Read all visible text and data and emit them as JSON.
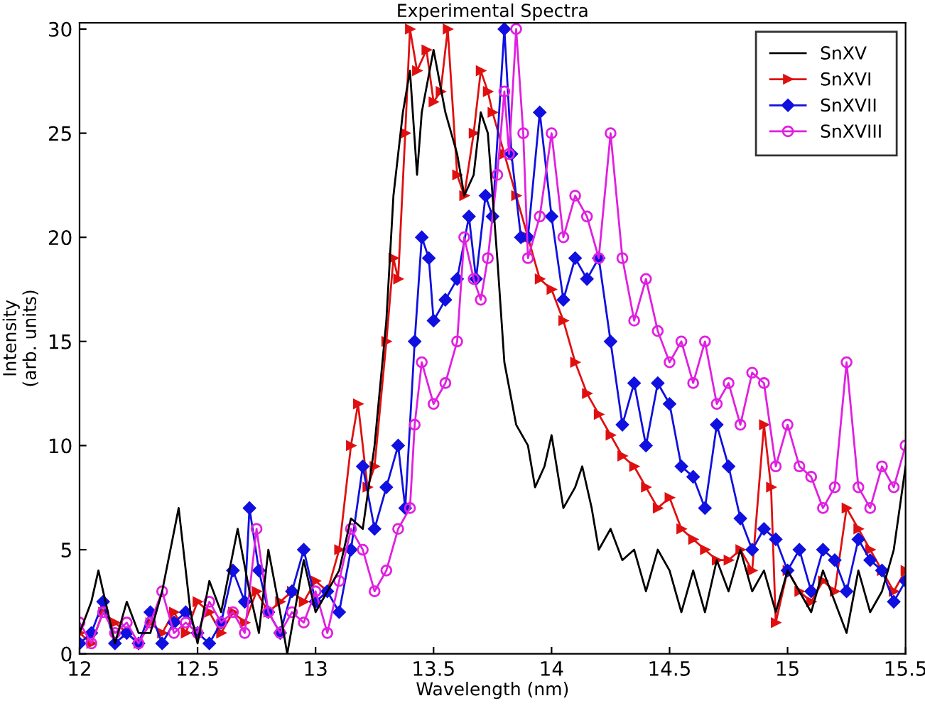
{
  "chart_data": {
    "type": "line",
    "title": "Experimental Spectra",
    "xlabel": "Wavelength (nm)",
    "ylabel": "Intensity\n(arb. units)",
    "xlim": [
      12,
      15.5
    ],
    "ylim": [
      0,
      30.3
    ],
    "xticks": [
      12,
      12.5,
      13,
      13.5,
      14,
      14.5,
      15,
      15.5
    ],
    "yticks": [
      0,
      5,
      10,
      15,
      20,
      25,
      30
    ],
    "grid": false,
    "legend": "top right",
    "line_style": "solid",
    "series": [
      {
        "name": "SnXV",
        "color": "#000000",
        "marker": "none",
        "x": [
          12.0,
          12.05,
          12.08,
          12.12,
          12.15,
          12.2,
          12.25,
          12.3,
          12.35,
          12.42,
          12.47,
          12.5,
          12.55,
          12.6,
          12.67,
          12.72,
          12.76,
          12.8,
          12.85,
          12.88,
          12.95,
          13.0,
          13.05,
          13.1,
          13.15,
          13.2,
          13.25,
          13.3,
          13.33,
          13.37,
          13.4,
          13.43,
          13.45,
          13.5,
          13.55,
          13.6,
          13.63,
          13.67,
          13.7,
          13.73,
          13.77,
          13.8,
          13.85,
          13.9,
          13.93,
          13.97,
          14.0,
          14.05,
          14.1,
          14.13,
          14.17,
          14.2,
          14.25,
          14.3,
          14.35,
          14.4,
          14.45,
          14.5,
          14.55,
          14.6,
          14.65,
          14.7,
          14.75,
          14.8,
          14.85,
          14.9,
          14.95,
          15.0,
          15.05,
          15.1,
          15.15,
          15.2,
          15.25,
          15.3,
          15.35,
          15.4,
          15.45,
          15.5
        ],
        "values": [
          1,
          2.5,
          4,
          2,
          0.5,
          2.5,
          1,
          1,
          3,
          7,
          2,
          0.5,
          3.5,
          2,
          6,
          3,
          1,
          5,
          2,
          0,
          4.5,
          2,
          3,
          4,
          6.5,
          6,
          10,
          16,
          22,
          26,
          28,
          23,
          26,
          29,
          26,
          24,
          22,
          23,
          26,
          25,
          19,
          14,
          11,
          10,
          8,
          9,
          10.5,
          7,
          8,
          9,
          7,
          5,
          6,
          4.5,
          5,
          3,
          5,
          4,
          2,
          4,
          2,
          4.5,
          3,
          5,
          3,
          4,
          2,
          4,
          3,
          2,
          4,
          2.5,
          1,
          4,
          2,
          3,
          5,
          9
        ]
      },
      {
        "name": "SnXVI",
        "color": "#e01010",
        "marker": "triangle",
        "x": [
          12.0,
          12.05,
          12.1,
          12.15,
          12.2,
          12.25,
          12.3,
          12.35,
          12.4,
          12.45,
          12.5,
          12.55,
          12.6,
          12.65,
          12.7,
          12.75,
          12.8,
          12.85,
          12.9,
          12.95,
          13.0,
          13.05,
          13.1,
          13.15,
          13.18,
          13.22,
          13.25,
          13.3,
          13.33,
          13.35,
          13.38,
          13.4,
          13.43,
          13.47,
          13.5,
          13.53,
          13.56,
          13.6,
          13.63,
          13.67,
          13.7,
          13.73,
          13.75,
          13.8,
          13.85,
          13.9,
          13.95,
          14.0,
          14.05,
          14.1,
          14.15,
          14.2,
          14.25,
          14.3,
          14.35,
          14.4,
          14.45,
          14.5,
          14.55,
          14.6,
          14.65,
          14.7,
          14.75,
          14.8,
          14.85,
          14.9,
          14.93,
          14.95,
          15.0,
          15.05,
          15.1,
          15.15,
          15.2,
          15.25,
          15.3,
          15.35,
          15.4,
          15.45,
          15.5
        ],
        "values": [
          1,
          0.5,
          2,
          1.5,
          1,
          0.5,
          1.5,
          1,
          2,
          1,
          2.5,
          2,
          1,
          2,
          1.5,
          3,
          2,
          2.5,
          3,
          2.5,
          3.5,
          3,
          5,
          10,
          12,
          8,
          9,
          15,
          19,
          18,
          25,
          30,
          28,
          29,
          26.5,
          27,
          30,
          23,
          22,
          25,
          28,
          27,
          26,
          24,
          22,
          20,
          18,
          17.5,
          16,
          14,
          12.5,
          11.5,
          10.5,
          9.5,
          9,
          8,
          7,
          7.5,
          6,
          5.5,
          5,
          4.5,
          4.5,
          5,
          4,
          11,
          8,
          1.5,
          4,
          3,
          2.5,
          3.5,
          3,
          7,
          6,
          5,
          4,
          3,
          4
        ]
      },
      {
        "name": "SnXVII",
        "color": "#1010e0",
        "marker": "diamond",
        "x": [
          12.0,
          12.05,
          12.1,
          12.15,
          12.2,
          12.25,
          12.3,
          12.35,
          12.4,
          12.45,
          12.5,
          12.55,
          12.6,
          12.65,
          12.7,
          12.72,
          12.76,
          12.8,
          12.85,
          12.9,
          12.95,
          13.0,
          13.05,
          13.1,
          13.15,
          13.2,
          13.25,
          13.3,
          13.35,
          13.38,
          13.42,
          13.45,
          13.48,
          13.5,
          13.55,
          13.6,
          13.65,
          13.68,
          13.72,
          13.75,
          13.8,
          13.83,
          13.87,
          13.9,
          13.95,
          14.0,
          14.05,
          14.1,
          14.15,
          14.2,
          14.25,
          14.3,
          14.35,
          14.4,
          14.45,
          14.5,
          14.55,
          14.6,
          14.65,
          14.7,
          14.75,
          14.8,
          14.85,
          14.9,
          14.95,
          15.0,
          15.05,
          15.1,
          15.15,
          15.2,
          15.25,
          15.3,
          15.35,
          15.4,
          15.45,
          15.5
        ],
        "values": [
          0.5,
          1,
          2.5,
          0.5,
          1,
          0.5,
          2,
          0.5,
          1.5,
          2,
          1,
          0.5,
          1.5,
          4,
          2.5,
          7,
          4,
          2,
          1,
          3,
          5,
          2.5,
          3,
          2,
          5,
          9,
          6,
          8,
          10,
          7,
          15,
          20,
          19,
          16,
          17,
          18,
          21,
          18,
          22,
          21,
          30,
          24,
          20,
          20,
          26,
          21,
          17,
          19,
          18,
          19,
          15,
          11,
          13,
          10,
          13,
          12,
          9,
          8.5,
          7,
          11,
          9,
          6.5,
          5,
          6,
          5.5,
          4,
          5,
          3,
          5,
          4.5,
          3,
          5.5,
          4.5,
          4,
          2.5,
          3.5
        ]
      },
      {
        "name": "SnXVIII",
        "color": "#e020e0",
        "marker": "circle",
        "x": [
          12.0,
          12.05,
          12.1,
          12.15,
          12.2,
          12.25,
          12.3,
          12.35,
          12.4,
          12.45,
          12.5,
          12.55,
          12.6,
          12.65,
          12.7,
          12.75,
          12.8,
          12.85,
          12.9,
          12.95,
          13.0,
          13.05,
          13.1,
          13.15,
          13.2,
          13.25,
          13.3,
          13.35,
          13.4,
          13.42,
          13.45,
          13.5,
          13.55,
          13.6,
          13.63,
          13.67,
          13.7,
          13.73,
          13.77,
          13.8,
          13.82,
          13.85,
          13.88,
          13.9,
          13.95,
          14.0,
          14.05,
          14.1,
          14.15,
          14.2,
          14.25,
          14.3,
          14.35,
          14.4,
          14.45,
          14.5,
          14.55,
          14.6,
          14.65,
          14.7,
          14.75,
          14.8,
          14.85,
          14.9,
          14.95,
          15.0,
          15.05,
          15.1,
          15.15,
          15.2,
          15.25,
          15.3,
          15.35,
          15.4,
          15.45,
          15.5
        ],
        "values": [
          1.5,
          0.5,
          2,
          1,
          1.5,
          0.5,
          1.5,
          3,
          1,
          1.5,
          1,
          2.5,
          1.5,
          2,
          1,
          6,
          2,
          1,
          2,
          1.5,
          3,
          1,
          3.5,
          6,
          5,
          3,
          4,
          6,
          7,
          11,
          14,
          12,
          13,
          15,
          20,
          18,
          17,
          19,
          23,
          27,
          24,
          30,
          25,
          19,
          21,
          25,
          20,
          22,
          21,
          19,
          25,
          19,
          16,
          18,
          15.5,
          14,
          15,
          13,
          15,
          12,
          13,
          11,
          13.5,
          13,
          9,
          11,
          9,
          8.5,
          7,
          8,
          14,
          8,
          7,
          9,
          8,
          10
        ]
      }
    ]
  }
}
